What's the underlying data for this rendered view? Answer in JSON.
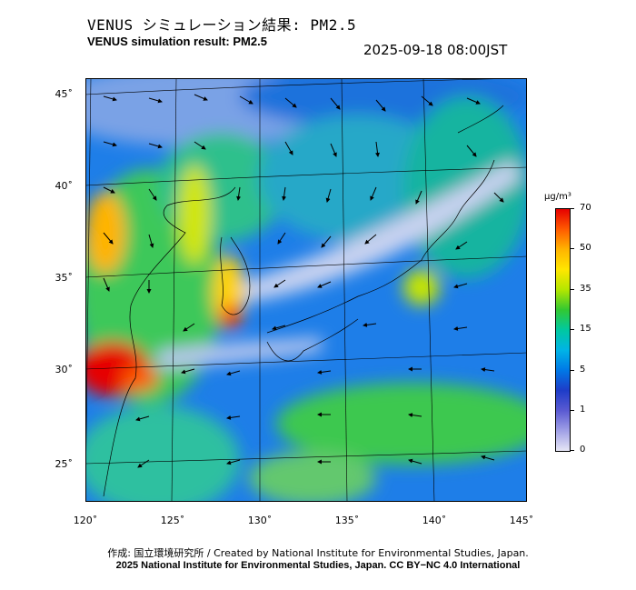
{
  "header": {
    "title_jp": "VENUS シミュレーション結果: PM2.5",
    "title_en": "VENUS simulation result: PM2.5",
    "timestamp": "2025-09-18 08:00JST"
  },
  "axes": {
    "lat_labels": [
      "45˚",
      "40˚",
      "35˚",
      "30˚",
      "25˚"
    ],
    "lon_labels": [
      "120˚",
      "125˚",
      "130˚",
      "135˚",
      "140˚",
      "145˚"
    ]
  },
  "colorbar": {
    "unit": "μg/m³",
    "labels": [
      "70",
      "50",
      "35",
      "15",
      "5",
      "1",
      "0"
    ],
    "colors": [
      "#e60000",
      "#ff5a00",
      "#ffb400",
      "#ffe600",
      "#b4e600",
      "#32c832",
      "#00c8a0",
      "#00b4e6",
      "#0078e6",
      "#1e3cc8",
      "#5a5ad2",
      "#a0a0e6",
      "#e6e6f5"
    ]
  },
  "credits": {
    "line1": "作成: 国立環境研究所 / Created by National Institute for Environmental Studies, Japan.",
    "line2": "2025 National Institute for Environmental Studies, Japan. CC BY−NC 4.0 International"
  }
}
